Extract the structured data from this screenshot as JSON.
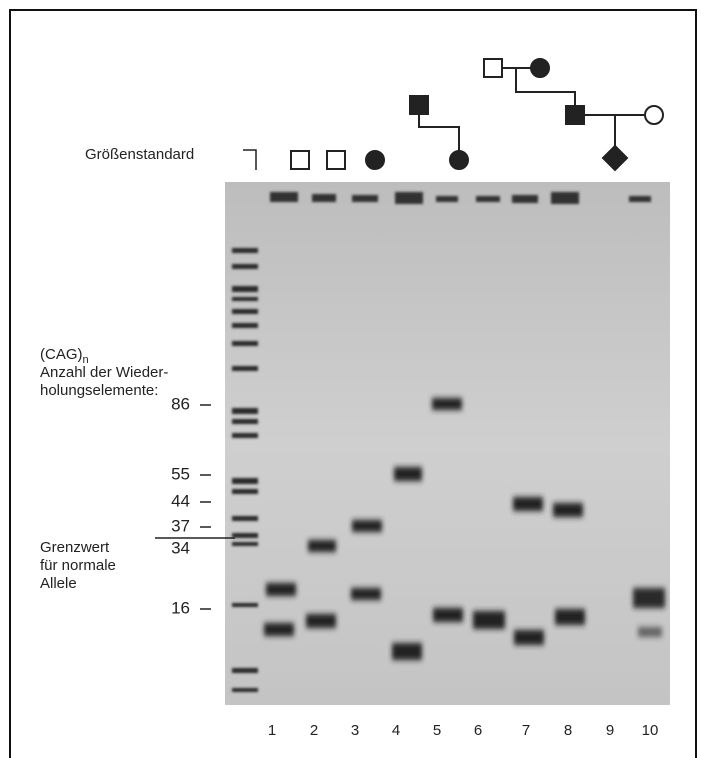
{
  "size_standard": "Größenstandard",
  "repeat_label": {
    "text": "(CAG)",
    "subscript": "n"
  },
  "axis_title": [
    "Anzahl der Wieder-",
    "holungselemente:"
  ],
  "sizes": [
    86,
    55,
    44,
    37,
    34,
    16
  ],
  "threshold": [
    "Grenzwert",
    "für normale",
    "Allele"
  ],
  "lanes": [
    "1",
    "2",
    "3",
    "4",
    "5",
    "6",
    "7",
    "8",
    "9",
    "10"
  ]
}
